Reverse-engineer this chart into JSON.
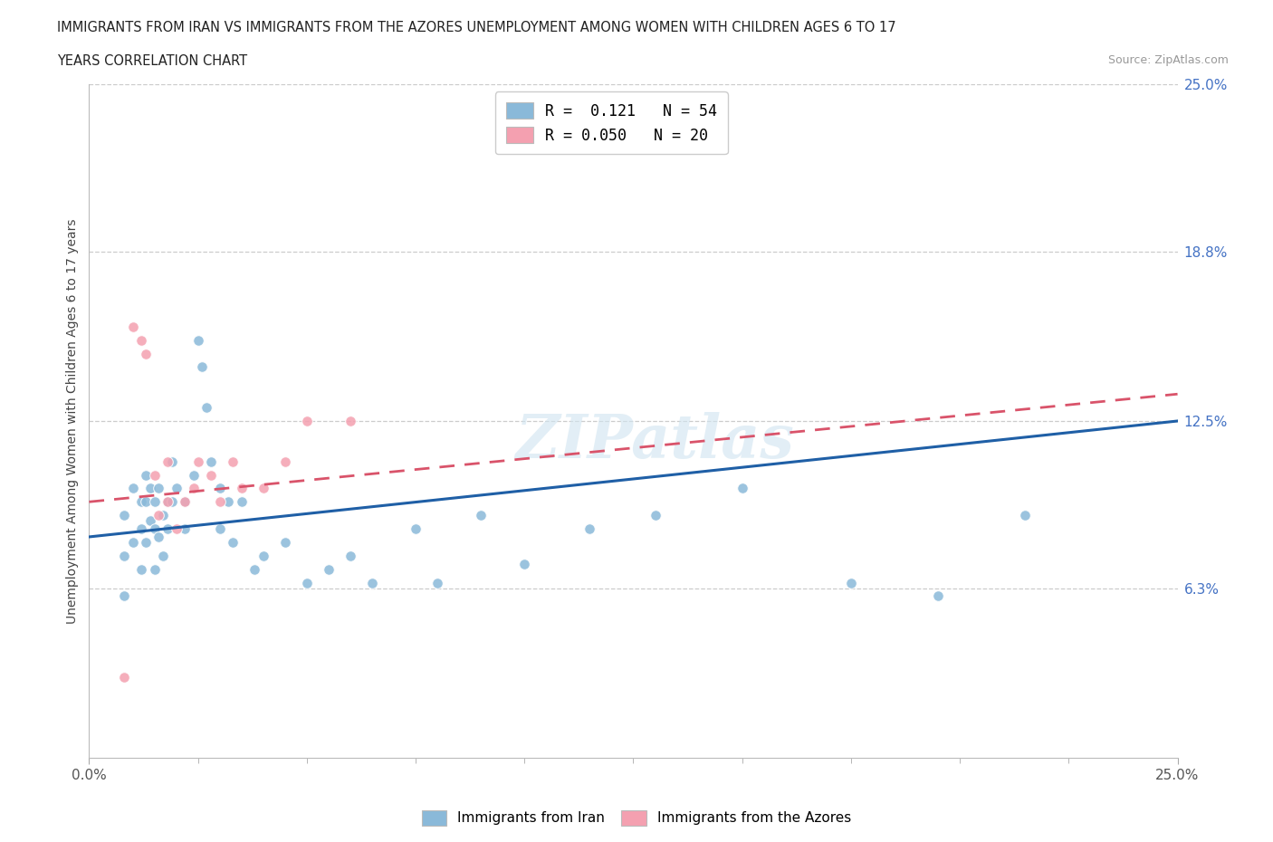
{
  "title_line1": "IMMIGRANTS FROM IRAN VS IMMIGRANTS FROM THE AZORES UNEMPLOYMENT AMONG WOMEN WITH CHILDREN AGES 6 TO 17",
  "title_line2": "YEARS CORRELATION CHART",
  "source_text": "Source: ZipAtlas.com",
  "ylabel": "Unemployment Among Women with Children Ages 6 to 17 years",
  "xlim": [
    0,
    0.25
  ],
  "ylim": [
    0,
    0.25
  ],
  "ytick_labels_right": [
    "6.3%",
    "12.5%",
    "18.8%",
    "25.0%"
  ],
  "ytick_values_right": [
    0.063,
    0.125,
    0.188,
    0.25
  ],
  "gridline_values": [
    0.063,
    0.125,
    0.188,
    0.25
  ],
  "iran_color": "#8AB9D9",
  "azores_color": "#F4A0B0",
  "iran_trend_color": "#1F5FA6",
  "azores_trend_color": "#D9536A",
  "legend_R_iran": "0.121",
  "legend_N_iran": "54",
  "legend_R_azores": "0.050",
  "legend_N_azores": "20",
  "watermark": "ZIPatlas",
  "iran_scatter_x": [
    0.008,
    0.008,
    0.008,
    0.01,
    0.01,
    0.012,
    0.012,
    0.012,
    0.013,
    0.013,
    0.013,
    0.014,
    0.014,
    0.015,
    0.015,
    0.015,
    0.016,
    0.016,
    0.017,
    0.017,
    0.018,
    0.018,
    0.019,
    0.019,
    0.02,
    0.022,
    0.022,
    0.024,
    0.025,
    0.026,
    0.027,
    0.028,
    0.03,
    0.03,
    0.032,
    0.033,
    0.035,
    0.038,
    0.04,
    0.045,
    0.05,
    0.055,
    0.06,
    0.065,
    0.075,
    0.08,
    0.09,
    0.1,
    0.115,
    0.13,
    0.15,
    0.175,
    0.195,
    0.215
  ],
  "iran_scatter_y": [
    0.09,
    0.075,
    0.06,
    0.1,
    0.08,
    0.095,
    0.085,
    0.07,
    0.105,
    0.095,
    0.08,
    0.1,
    0.088,
    0.095,
    0.085,
    0.07,
    0.1,
    0.082,
    0.09,
    0.075,
    0.095,
    0.085,
    0.11,
    0.095,
    0.1,
    0.095,
    0.085,
    0.105,
    0.155,
    0.145,
    0.13,
    0.11,
    0.1,
    0.085,
    0.095,
    0.08,
    0.095,
    0.07,
    0.075,
    0.08,
    0.065,
    0.07,
    0.075,
    0.065,
    0.085,
    0.065,
    0.09,
    0.072,
    0.085,
    0.09,
    0.1,
    0.065,
    0.06,
    0.09
  ],
  "azores_scatter_x": [
    0.008,
    0.01,
    0.012,
    0.013,
    0.015,
    0.016,
    0.018,
    0.018,
    0.02,
    0.022,
    0.024,
    0.025,
    0.028,
    0.03,
    0.033,
    0.035,
    0.04,
    0.045,
    0.05,
    0.06
  ],
  "azores_scatter_y": [
    0.03,
    0.16,
    0.155,
    0.15,
    0.105,
    0.09,
    0.095,
    0.11,
    0.085,
    0.095,
    0.1,
    0.11,
    0.105,
    0.095,
    0.11,
    0.1,
    0.1,
    0.11,
    0.125,
    0.125
  ],
  "iran_trend_x0": 0.0,
  "iran_trend_y0": 0.082,
  "iran_trend_x1": 0.25,
  "iran_trend_y1": 0.125,
  "azores_trend_x0": 0.0,
  "azores_trend_y0": 0.095,
  "azores_trend_x1": 0.25,
  "azores_trend_y1": 0.135,
  "background_color": "#ffffff",
  "plot_bg_color": "#ffffff"
}
